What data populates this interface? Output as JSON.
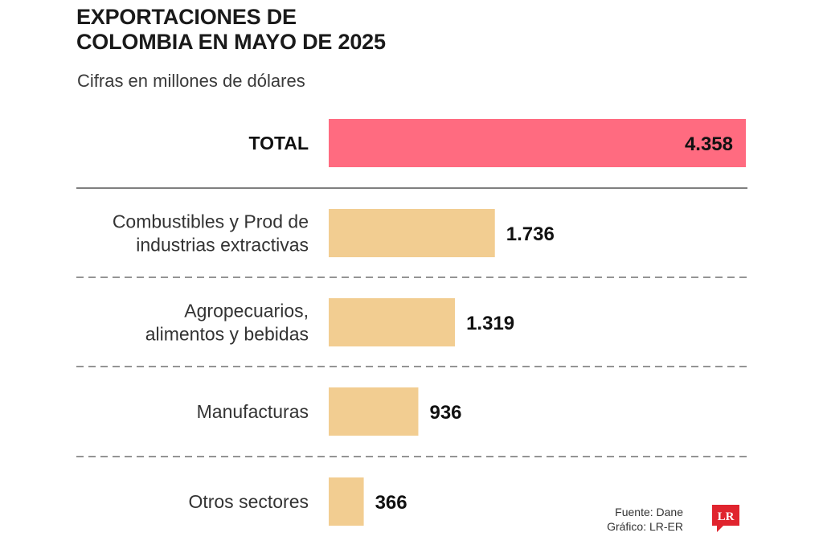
{
  "header": {
    "title_line1": "EXPORTACIONES DE",
    "title_line2": "COLOMBIA EN MAYO DE 2025",
    "subtitle": "Cifras en millones de dólares"
  },
  "chart_data": {
    "type": "bar",
    "orientation": "horizontal",
    "title": "EXPORTACIONES DE COLOMBIA EN MAYO DE 2025",
    "subtitle": "Cifras en millones de dólares",
    "categories": [
      [
        "TOTAL"
      ],
      [
        "Combustibles y Prod de",
        "industrias extractivas"
      ],
      [
        "Agropecuarios,",
        "alimentos y bebidas"
      ],
      [
        "Manufacturas"
      ],
      [
        "Otros sectores"
      ]
    ],
    "values": [
      4358,
      1736,
      1319,
      936,
      366
    ],
    "value_labels": [
      "4.358",
      "1.736",
      "1.319",
      "936",
      "366"
    ],
    "total_color": "#ff6b80",
    "bar_color": "#f2cd91",
    "grid": false
  },
  "footer": {
    "source_line1": "Fuente: Dane",
    "source_line2": "Gráfico: LR-ER",
    "logo_text": "LR",
    "logo_color": "#e0242e"
  }
}
